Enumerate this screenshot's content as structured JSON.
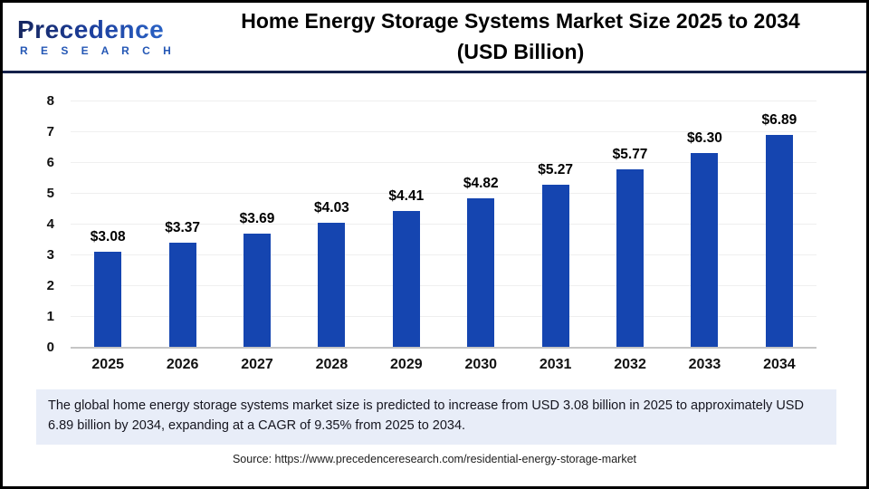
{
  "header": {
    "logo": {
      "brand_top": "Precedence",
      "brand_bottom": "R E S E A R C H"
    },
    "title_line1": "Home Energy Storage Systems Market Size 2025 to 2034",
    "title_line2": "(USD Billion)"
  },
  "chart_data": {
    "type": "bar",
    "title": "Home Energy Storage Systems Market Size 2025 to 2034 (USD Billion)",
    "categories": [
      "2025",
      "2026",
      "2027",
      "2028",
      "2029",
      "2030",
      "2031",
      "2032",
      "2033",
      "2034"
    ],
    "values": [
      3.08,
      3.37,
      3.69,
      4.03,
      4.41,
      4.82,
      5.27,
      5.77,
      6.3,
      6.89
    ],
    "value_labels": [
      "$3.08",
      "$3.37",
      "$3.69",
      "$4.03",
      "$4.41",
      "$4.82",
      "$5.27",
      "$5.77",
      "$6.30",
      "$6.89"
    ],
    "xlabel": "",
    "ylabel": "",
    "ylim": [
      0,
      8
    ],
    "yticks": [
      0,
      1,
      2,
      3,
      4,
      5,
      6,
      7,
      8
    ],
    "grid": true,
    "legend": "none",
    "bar_color": "#1545b0"
  },
  "footer": {
    "summary": "The global home energy storage systems market size is predicted to increase from USD 3.08 billion in 2025 to approximately USD 6.89 billion by 2034, expanding at a CAGR of 9.35% from 2025 to 2034.",
    "source": "Source: https://www.precedenceresearch.com/residential-energy-storage-market"
  },
  "colors": {
    "bar": "#1545b0",
    "header_divider": "#15214a",
    "callout_bg": "#e8edf8",
    "baseline": "#c5c5c5",
    "gridline": "#efefef",
    "logo_dark": "#16265e",
    "logo_light": "#2e6cd0"
  }
}
